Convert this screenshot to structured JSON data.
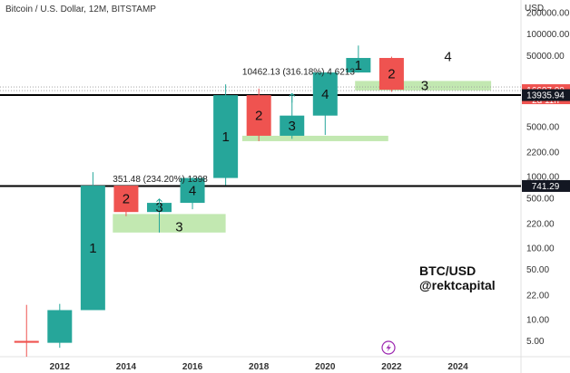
{
  "header": {
    "title": "Bitcoin / U.S. Dollar, 12M, BITSTAMP"
  },
  "chart_data": {
    "type": "candlestick",
    "title": "Bitcoin / U.S. Dollar, 12M, BITSTAMP",
    "ylabel": "USD",
    "yscale": "log",
    "ylim": [
      3,
      300000
    ],
    "xlim": [
      2010.2,
      2025.9
    ],
    "y_ticks": [
      {
        "value": 200000,
        "label": "200000.00"
      },
      {
        "value": 100000,
        "label": "100000.00"
      },
      {
        "value": 50000,
        "label": "50000.00"
      },
      {
        "value": 5000,
        "label": "5000.00"
      },
      {
        "value": 2200,
        "label": "2200.00"
      },
      {
        "value": 1000,
        "label": "1000.00"
      },
      {
        "value": 500,
        "label": "500.00"
      },
      {
        "value": 220,
        "label": "220.00"
      },
      {
        "value": 100,
        "label": "100.00"
      },
      {
        "value": 50,
        "label": "50.00"
      },
      {
        "value": 22,
        "label": "22.00"
      },
      {
        "value": 10,
        "label": "10.00"
      },
      {
        "value": 5,
        "label": "5.00"
      }
    ],
    "x_ticks": [
      {
        "value": 2012,
        "label": "2012"
      },
      {
        "value": 2014,
        "label": "2014"
      },
      {
        "value": 2016,
        "label": "2016"
      },
      {
        "value": 2018,
        "label": "2018"
      },
      {
        "value": 2020,
        "label": "2020"
      },
      {
        "value": 2022,
        "label": "2022"
      },
      {
        "value": 2024,
        "label": "2024"
      }
    ],
    "candles": [
      {
        "year": 2011,
        "open": 5.0,
        "high": 16.0,
        "low": 3.0,
        "close": 4.7,
        "label": ""
      },
      {
        "year": 2012,
        "open": 4.7,
        "high": 16.5,
        "low": 4.0,
        "close": 13.5,
        "label": ""
      },
      {
        "year": 2013,
        "open": 13.5,
        "high": 1160,
        "low": 13.5,
        "close": 750,
        "label": "1"
      },
      {
        "year": 2014,
        "open": 750,
        "high": 750,
        "low": 280,
        "close": 320,
        "label": "2"
      },
      {
        "year": 2015,
        "open": 320,
        "high": 460,
        "low": 165,
        "close": 430,
        "label": "3"
      },
      {
        "year": 2016,
        "open": 430,
        "high": 970,
        "low": 350,
        "close": 960,
        "label": "4"
      },
      {
        "year": 2017,
        "open": 960,
        "high": 19700,
        "low": 760,
        "close": 13900,
        "label": "1"
      },
      {
        "year": 2018,
        "open": 13900,
        "high": 17200,
        "low": 3150,
        "close": 3750,
        "label": "2"
      },
      {
        "year": 2019,
        "open": 3750,
        "high": 13800,
        "low": 3400,
        "close": 7190,
        "label": "3"
      },
      {
        "year": 2020,
        "open": 7190,
        "high": 29000,
        "low": 3850,
        "close": 28900,
        "label": "4"
      },
      {
        "year": 2021,
        "open": 28900,
        "high": 69000,
        "low": 28800,
        "close": 46200,
        "label": "1"
      },
      {
        "year": 2022,
        "open": 46200,
        "high": 48200,
        "low": 15500,
        "close": 16600,
        "label": "2"
      }
    ],
    "horizontal_lines": [
      {
        "value": 13935.94,
        "label": "13935.94"
      },
      {
        "value": 741.29,
        "label": "741.29"
      }
    ],
    "current_price": {
      "value": 16607.0,
      "label": "16607.00",
      "countdown": "2d 11h"
    },
    "zones": [
      {
        "x0": 2013.6,
        "x1": 2017.0,
        "y0": 165,
        "y1": 300
      },
      {
        "x0": 2017.5,
        "x1": 2021.9,
        "y0": 3150,
        "y1": 3750
      },
      {
        "x0": 2020.9,
        "x1": 2025.0,
        "y0": 16200,
        "y1": 22000
      }
    ],
    "annotations": [
      {
        "text": "351.48 (234.20%) 1398",
        "x": 2013.6,
        "y": 850
      },
      {
        "text": "10462.13 (316.18%) 4 6213",
        "x": 2017.5,
        "y": 27000
      }
    ],
    "extra_labels": [
      {
        "text": "3",
        "x": 2015.6,
        "y": 200
      },
      {
        "text": "3",
        "x": 2023.0,
        "y": 19000
      },
      {
        "text": "4",
        "x": 2023.7,
        "y": 48000
      }
    ],
    "colors": {
      "up": "#26a69a",
      "down": "#ef5350",
      "zone": "#b7e4a3",
      "line": "#000000"
    }
  },
  "brand": {
    "line1": "BTC/USD",
    "line2": "@rektcapital"
  },
  "axis": {
    "currency": "USD"
  }
}
